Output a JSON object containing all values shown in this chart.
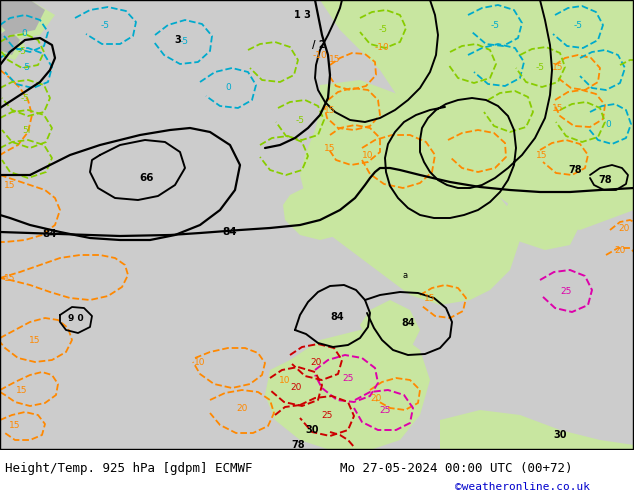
{
  "title_left": "Height/Temp. 925 hPa [gdpm] ECMWF",
  "title_right": "Mo 27-05-2024 00:00 UTC (00+72)",
  "credit": "©weatheronline.co.uk",
  "bg_color": "#ffffff",
  "footer_fontsize": 9,
  "credit_color": "#0000cc",
  "title_color": "#000000",
  "cc_black": "#000000",
  "cc_orange": "#ff8800",
  "cc_cyan": "#00aacc",
  "cc_green": "#88cc00",
  "cc_magenta": "#dd00aa",
  "cc_red": "#cc0000",
  "cc_darkgreen": "#009900",
  "fig_width": 6.34,
  "fig_height": 4.9,
  "dpi": 100
}
